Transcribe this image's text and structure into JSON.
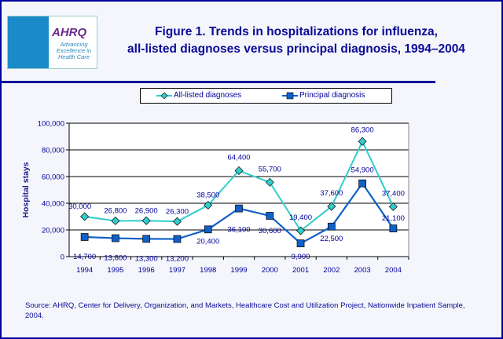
{
  "header": {
    "logo_text": "AHRQ",
    "logo_tagline": "Advancing Excellence in Health Care",
    "title_line1": "Figure 1. Trends in hospitalizations for influenza,",
    "title_line2": "all-listed diagnoses versus principal diagnosis, 1994–2004"
  },
  "chart_data": {
    "type": "line",
    "title": "Figure 1. Trends in hospitalizations for influenza, all-listed diagnoses versus principal diagnosis, 1994–2004",
    "xlabel": "",
    "ylabel": "Hospital stays",
    "categories": [
      "1994",
      "1995",
      "1996",
      "1997",
      "1998",
      "1999",
      "2000",
      "2001",
      "2002",
      "2003",
      "2004"
    ],
    "ylim": [
      0,
      100000
    ],
    "yticks": [
      "0",
      "20,000",
      "40,000",
      "60,000",
      "80,000",
      "100,000"
    ],
    "grid": true,
    "legend": "top",
    "series": [
      {
        "name": "All-listed diagnoses",
        "color": "#33cccc",
        "marker": "diamond",
        "values": [
          30000,
          26800,
          26900,
          26300,
          38500,
          64400,
          55700,
          19400,
          37600,
          86300,
          37400
        ],
        "labels": [
          "30,000",
          "26,800",
          "26,900",
          "26,300",
          "38,500",
          "64,400",
          "55,700",
          "19,400",
          "37,600",
          "86,300",
          "37,400"
        ]
      },
      {
        "name": "Principal diagnosis",
        "color": "#1060c8",
        "marker": "square",
        "values": [
          14700,
          13800,
          13300,
          13200,
          20400,
          36100,
          30600,
          9900,
          22500,
          54900,
          21100
        ],
        "labels": [
          "14,700",
          "13,800",
          "13,300",
          "13,200",
          "20,400",
          "36,100",
          "30,600",
          "9,900",
          "22,500",
          "54,900",
          "21,100"
        ]
      }
    ]
  },
  "source": "Source: AHRQ, Center for Delivery, Organization, and Markets, Healthcare Cost and Utilization Project, Nationwide Inpatient Sample, 2004."
}
